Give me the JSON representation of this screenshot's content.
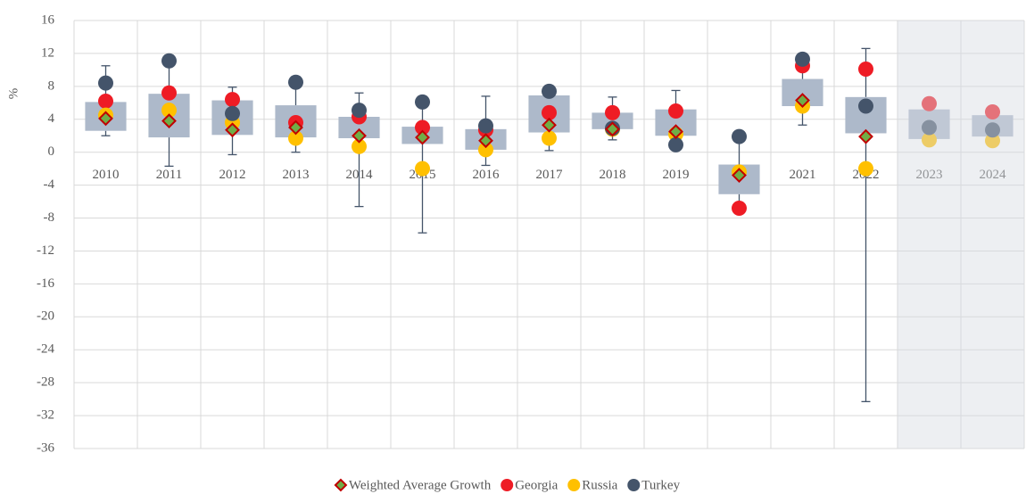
{
  "chart_data": {
    "type": "box",
    "y_label": "%",
    "categories": [
      "2010",
      "2011",
      "2012",
      "2013",
      "2014",
      "2015",
      "2016",
      "2017",
      "2018",
      "2019",
      "2020",
      "2021",
      "2022",
      "2023",
      "2024"
    ],
    "boxes": {
      "color": "#adb9ca",
      "whisker_color": "#44546a",
      "whisker_low": [
        2.0,
        -1.7,
        -0.3,
        0.0,
        -6.6,
        -9.8,
        -1.6,
        0.2,
        1.5,
        0.9,
        -7.0,
        3.3,
        -30.3,
        null,
        null
      ],
      "q1": [
        2.6,
        1.8,
        2.1,
        1.8,
        1.7,
        1.0,
        0.3,
        2.4,
        2.8,
        2.0,
        -5.1,
        5.6,
        2.3,
        1.6,
        1.9
      ],
      "q3": [
        6.1,
        7.1,
        6.3,
        5.7,
        4.3,
        3.1,
        2.8,
        6.9,
        4.8,
        5.2,
        -1.5,
        8.9,
        6.7,
        5.2,
        4.5
      ],
      "whisker_high": [
        10.5,
        11.1,
        7.9,
        8.5,
        7.2,
        6.1,
        6.8,
        7.4,
        6.7,
        7.5,
        1.9,
        11.2,
        12.6,
        null,
        null
      ]
    },
    "series": [
      {
        "name": "Weighted Average Growth",
        "marker": "diamond",
        "color": "#70ad47",
        "edge": "#c00000",
        "values": [
          4.1,
          3.8,
          2.7,
          3.0,
          2.0,
          1.8,
          1.4,
          3.3,
          2.8,
          2.5,
          -2.8,
          6.3,
          1.9,
          null,
          null
        ]
      },
      {
        "name": "Georgia",
        "marker": "circle",
        "color": "#ee1c25",
        "values": [
          6.2,
          7.2,
          6.4,
          3.6,
          4.3,
          3.0,
          2.7,
          4.8,
          4.8,
          5.0,
          -6.8,
          10.5,
          10.1,
          5.9,
          4.9
        ]
      },
      {
        "name": "Russia",
        "marker": "circle",
        "color": "#ffc000",
        "values": [
          4.5,
          5.1,
          3.6,
          1.7,
          0.7,
          -2.0,
          0.3,
          1.7,
          2.8,
          2.2,
          -2.4,
          5.6,
          -2.0,
          1.5,
          1.4
        ]
      },
      {
        "name": "Turkey",
        "marker": "circle",
        "color": "#44546a",
        "values": [
          8.4,
          11.1,
          4.7,
          8.5,
          5.1,
          6.1,
          3.2,
          7.4,
          2.9,
          0.9,
          1.9,
          11.3,
          5.6,
          3.0,
          2.7
        ]
      }
    ],
    "ylim": [
      -36,
      16
    ],
    "yticks": [
      -36,
      -32,
      -28,
      -24,
      -20,
      -16,
      -12,
      -8,
      -4,
      0,
      4,
      8,
      12,
      16
    ],
    "grid": true,
    "legend": "bottom",
    "shaded_categories": [
      "2023",
      "2024"
    ]
  }
}
